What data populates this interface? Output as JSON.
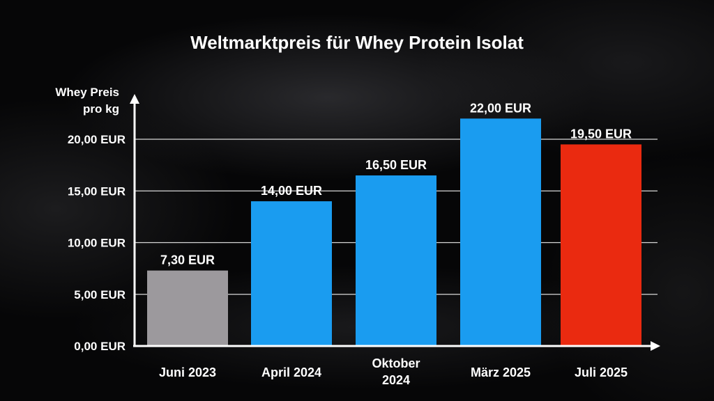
{
  "chart_data": {
    "type": "bar",
    "title": "Weltmarktpreis für Whey Protein Isolat",
    "ylabel_lines": [
      "Whey Preis",
      "pro kg"
    ],
    "xlabel": "",
    "categories": [
      [
        "Juni 2023"
      ],
      [
        "April 2024"
      ],
      [
        "Oktober",
        "2024"
      ],
      [
        "März 2025"
      ],
      [
        "Juli 2025"
      ]
    ],
    "values": [
      7.3,
      14.0,
      16.5,
      22.0,
      19.5
    ],
    "value_labels": [
      "7,30 EUR",
      "14,00 EUR",
      "16,50 EUR",
      "22,00 EUR",
      "19,50 EUR"
    ],
    "bar_colors": [
      "#9c999d",
      "#1a9cf0",
      "#1a9cf0",
      "#1a9cf0",
      "#ea2a10"
    ],
    "ylim": [
      0,
      22
    ],
    "yticks": [
      0,
      5,
      10,
      15,
      20
    ],
    "ytick_labels": [
      "0,00 EUR",
      "5,00 EUR",
      "10,00 EUR",
      "15,00 EUR",
      "20,00 EUR"
    ],
    "grid": true,
    "legend": "none"
  }
}
